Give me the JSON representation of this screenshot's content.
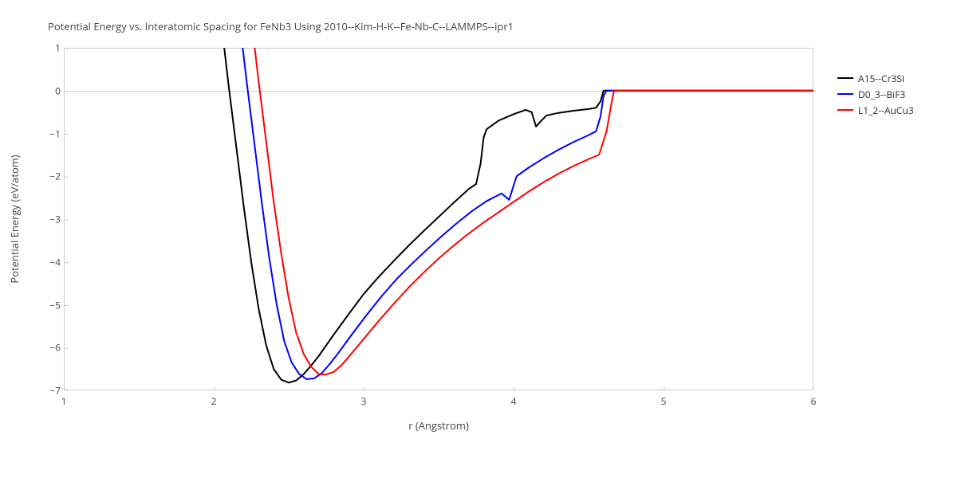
{
  "chart": {
    "type": "line",
    "title": "Potential Energy vs. Interatomic Spacing for FeNb3 Using 2010--Kim-H-K--Fe-Nb-C--LAMMPS--ipr1",
    "title_fontsize": 13,
    "title_color": "#444444",
    "background_color": "#ffffff",
    "grid_color": "#cccccc",
    "axis_label_fontsize": 13,
    "tick_label_fontsize": 12,
    "tick_label_color": "#444444",
    "xlabel": "r (Angstrom)",
    "ylabel": "Potential Energy (eV/atom)",
    "xlim": [
      1,
      6
    ],
    "ylim": [
      -7,
      1
    ],
    "xtick_step": 1,
    "ytick_step": 1,
    "xticks": [
      1,
      2,
      3,
      4,
      5,
      6
    ],
    "yticks": [
      -7,
      -6,
      -5,
      -4,
      -3,
      -2,
      -1,
      0,
      1
    ],
    "line_width": 2,
    "legend": {
      "position": "right",
      "items": [
        {
          "label": "A15--Cr3Si",
          "color": "#000000"
        },
        {
          "label": "D0_3--BiF3",
          "color": "#0000ff"
        },
        {
          "label": "L1_2--AuCu3",
          "color": "#ff0000"
        }
      ]
    },
    "series": [
      {
        "name": "A15--Cr3Si",
        "color": "#000000",
        "data": [
          [
            2.0,
            3.5
          ],
          [
            2.05,
            1.6
          ],
          [
            2.1,
            0.1
          ],
          [
            2.15,
            -1.3
          ],
          [
            2.2,
            -2.7
          ],
          [
            2.25,
            -4.0
          ],
          [
            2.3,
            -5.1
          ],
          [
            2.35,
            -5.95
          ],
          [
            2.4,
            -6.5
          ],
          [
            2.45,
            -6.75
          ],
          [
            2.5,
            -6.82
          ],
          [
            2.55,
            -6.77
          ],
          [
            2.6,
            -6.62
          ],
          [
            2.65,
            -6.42
          ],
          [
            2.7,
            -6.2
          ],
          [
            2.8,
            -5.7
          ],
          [
            2.9,
            -5.22
          ],
          [
            3.0,
            -4.75
          ],
          [
            3.1,
            -4.35
          ],
          [
            3.2,
            -3.98
          ],
          [
            3.3,
            -3.62
          ],
          [
            3.4,
            -3.28
          ],
          [
            3.5,
            -2.95
          ],
          [
            3.6,
            -2.62
          ],
          [
            3.7,
            -2.3
          ],
          [
            3.75,
            -2.18
          ],
          [
            3.78,
            -1.7
          ],
          [
            3.8,
            -1.1
          ],
          [
            3.82,
            -0.9
          ],
          [
            3.9,
            -0.7
          ],
          [
            4.0,
            -0.55
          ],
          [
            4.08,
            -0.45
          ],
          [
            4.12,
            -0.5
          ],
          [
            4.15,
            -0.84
          ],
          [
            4.18,
            -0.72
          ],
          [
            4.22,
            -0.58
          ],
          [
            4.3,
            -0.52
          ],
          [
            4.4,
            -0.47
          ],
          [
            4.5,
            -0.43
          ],
          [
            4.55,
            -0.4
          ],
          [
            4.58,
            -0.25
          ],
          [
            4.6,
            0.0
          ],
          [
            4.7,
            0.0
          ],
          [
            4.9,
            0.0
          ],
          [
            5.2,
            0.0
          ],
          [
            5.6,
            0.0
          ],
          [
            6.0,
            0.0
          ]
        ]
      },
      {
        "name": "D0_3--BiF3",
        "color": "#0000ff",
        "data": [
          [
            2.12,
            3.5
          ],
          [
            2.17,
            1.7
          ],
          [
            2.22,
            0.2
          ],
          [
            2.27,
            -1.2
          ],
          [
            2.32,
            -2.6
          ],
          [
            2.37,
            -3.9
          ],
          [
            2.42,
            -5.0
          ],
          [
            2.47,
            -5.85
          ],
          [
            2.52,
            -6.35
          ],
          [
            2.57,
            -6.62
          ],
          [
            2.62,
            -6.74
          ],
          [
            2.67,
            -6.72
          ],
          [
            2.72,
            -6.6
          ],
          [
            2.77,
            -6.4
          ],
          [
            2.82,
            -6.18
          ],
          [
            2.92,
            -5.7
          ],
          [
            3.02,
            -5.24
          ],
          [
            3.12,
            -4.8
          ],
          [
            3.22,
            -4.4
          ],
          [
            3.32,
            -4.05
          ],
          [
            3.42,
            -3.72
          ],
          [
            3.52,
            -3.4
          ],
          [
            3.62,
            -3.1
          ],
          [
            3.72,
            -2.82
          ],
          [
            3.82,
            -2.58
          ],
          [
            3.92,
            -2.4
          ],
          [
            3.97,
            -2.55
          ],
          [
            4.02,
            -2.0
          ],
          [
            4.1,
            -1.8
          ],
          [
            4.2,
            -1.58
          ],
          [
            4.3,
            -1.38
          ],
          [
            4.4,
            -1.2
          ],
          [
            4.5,
            -1.04
          ],
          [
            4.55,
            -0.95
          ],
          [
            4.58,
            -0.6
          ],
          [
            4.6,
            -0.12
          ],
          [
            4.62,
            0.0
          ],
          [
            4.75,
            0.0
          ],
          [
            5.0,
            0.0
          ],
          [
            5.4,
            0.0
          ],
          [
            5.8,
            0.0
          ],
          [
            6.0,
            0.0
          ]
        ]
      },
      {
        "name": "L1_2--AuCu3",
        "color": "#ff0000",
        "data": [
          [
            2.2,
            3.5
          ],
          [
            2.25,
            1.7
          ],
          [
            2.3,
            0.2
          ],
          [
            2.35,
            -1.2
          ],
          [
            2.4,
            -2.6
          ],
          [
            2.45,
            -3.8
          ],
          [
            2.5,
            -4.85
          ],
          [
            2.55,
            -5.65
          ],
          [
            2.6,
            -6.15
          ],
          [
            2.65,
            -6.45
          ],
          [
            2.7,
            -6.62
          ],
          [
            2.75,
            -6.63
          ],
          [
            2.8,
            -6.57
          ],
          [
            2.85,
            -6.42
          ],
          [
            2.9,
            -6.22
          ],
          [
            3.0,
            -5.8
          ],
          [
            3.1,
            -5.38
          ],
          [
            3.2,
            -4.98
          ],
          [
            3.3,
            -4.6
          ],
          [
            3.4,
            -4.25
          ],
          [
            3.5,
            -3.92
          ],
          [
            3.6,
            -3.62
          ],
          [
            3.7,
            -3.34
          ],
          [
            3.8,
            -3.08
          ],
          [
            3.9,
            -2.84
          ],
          [
            4.0,
            -2.6
          ],
          [
            4.1,
            -2.36
          ],
          [
            4.2,
            -2.14
          ],
          [
            4.3,
            -1.94
          ],
          [
            4.4,
            -1.76
          ],
          [
            4.5,
            -1.6
          ],
          [
            4.57,
            -1.5
          ],
          [
            4.62,
            -0.95
          ],
          [
            4.65,
            -0.35
          ],
          [
            4.67,
            0.0
          ],
          [
            4.8,
            0.0
          ],
          [
            5.1,
            0.0
          ],
          [
            5.5,
            0.0
          ],
          [
            6.0,
            0.0
          ]
        ]
      }
    ]
  }
}
